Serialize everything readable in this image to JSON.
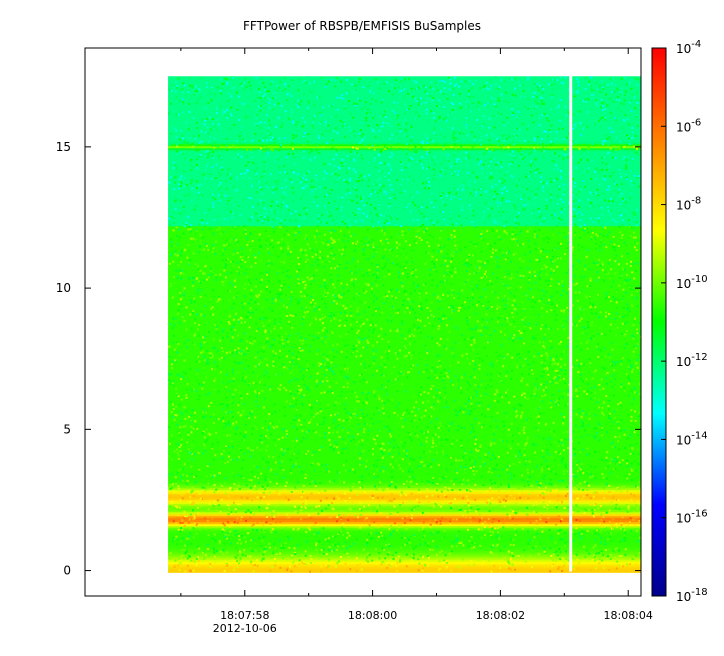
{
  "chart_data": {
    "type": "heatmap",
    "title": "FFTPower of RBSPB/EMFISIS  BuSamples",
    "x": {
      "ticks": [
        {
          "label": "18:07:58",
          "sub": "2012-10-06"
        },
        {
          "label": "18:08:00",
          "sub": ""
        },
        {
          "label": "18:08:02",
          "sub": ""
        },
        {
          "label": "18:08:04",
          "sub": ""
        }
      ],
      "minor_tick_seconds": [
        -3,
        -1,
        1,
        3
      ],
      "range_seconds": [
        -4.5,
        4.2
      ],
      "data_start_seconds": -3.2,
      "data_end_seconds": 4.2,
      "gap_seconds": 3.1
    },
    "y": {
      "ticks": [
        "0",
        "5",
        "10",
        "15"
      ],
      "tick_values": [
        0,
        5,
        10,
        15
      ],
      "ylim": [
        -0.9,
        18.5
      ],
      "data_top": 17.5
    },
    "colorbar": {
      "scale": "log",
      "range_exponent": [
        -18,
        -4
      ],
      "tick_exponents": [
        -18,
        -16,
        -14,
        -12,
        -10,
        -8,
        -6,
        -4
      ],
      "tick_base": "10",
      "colormap": [
        "#00008b",
        "#0000ff",
        "#00ffff",
        "#00ff00",
        "#ffff00",
        "#ff8000",
        "#ff0000"
      ]
    },
    "features": [
      {
        "y_from": 12.2,
        "y_to": 17.5,
        "log_power": -12.2
      },
      {
        "y_from": 3.0,
        "y_to": 12.2,
        "log_power": -10.6
      },
      {
        "y_center": 15.0,
        "log_power": -9.8
      },
      {
        "y_center": 2.6,
        "log_power": -7.6
      },
      {
        "y_center": 1.8,
        "log_power": -6.3
      },
      {
        "y_center": 0.0,
        "log_power": -7.8
      }
    ]
  }
}
